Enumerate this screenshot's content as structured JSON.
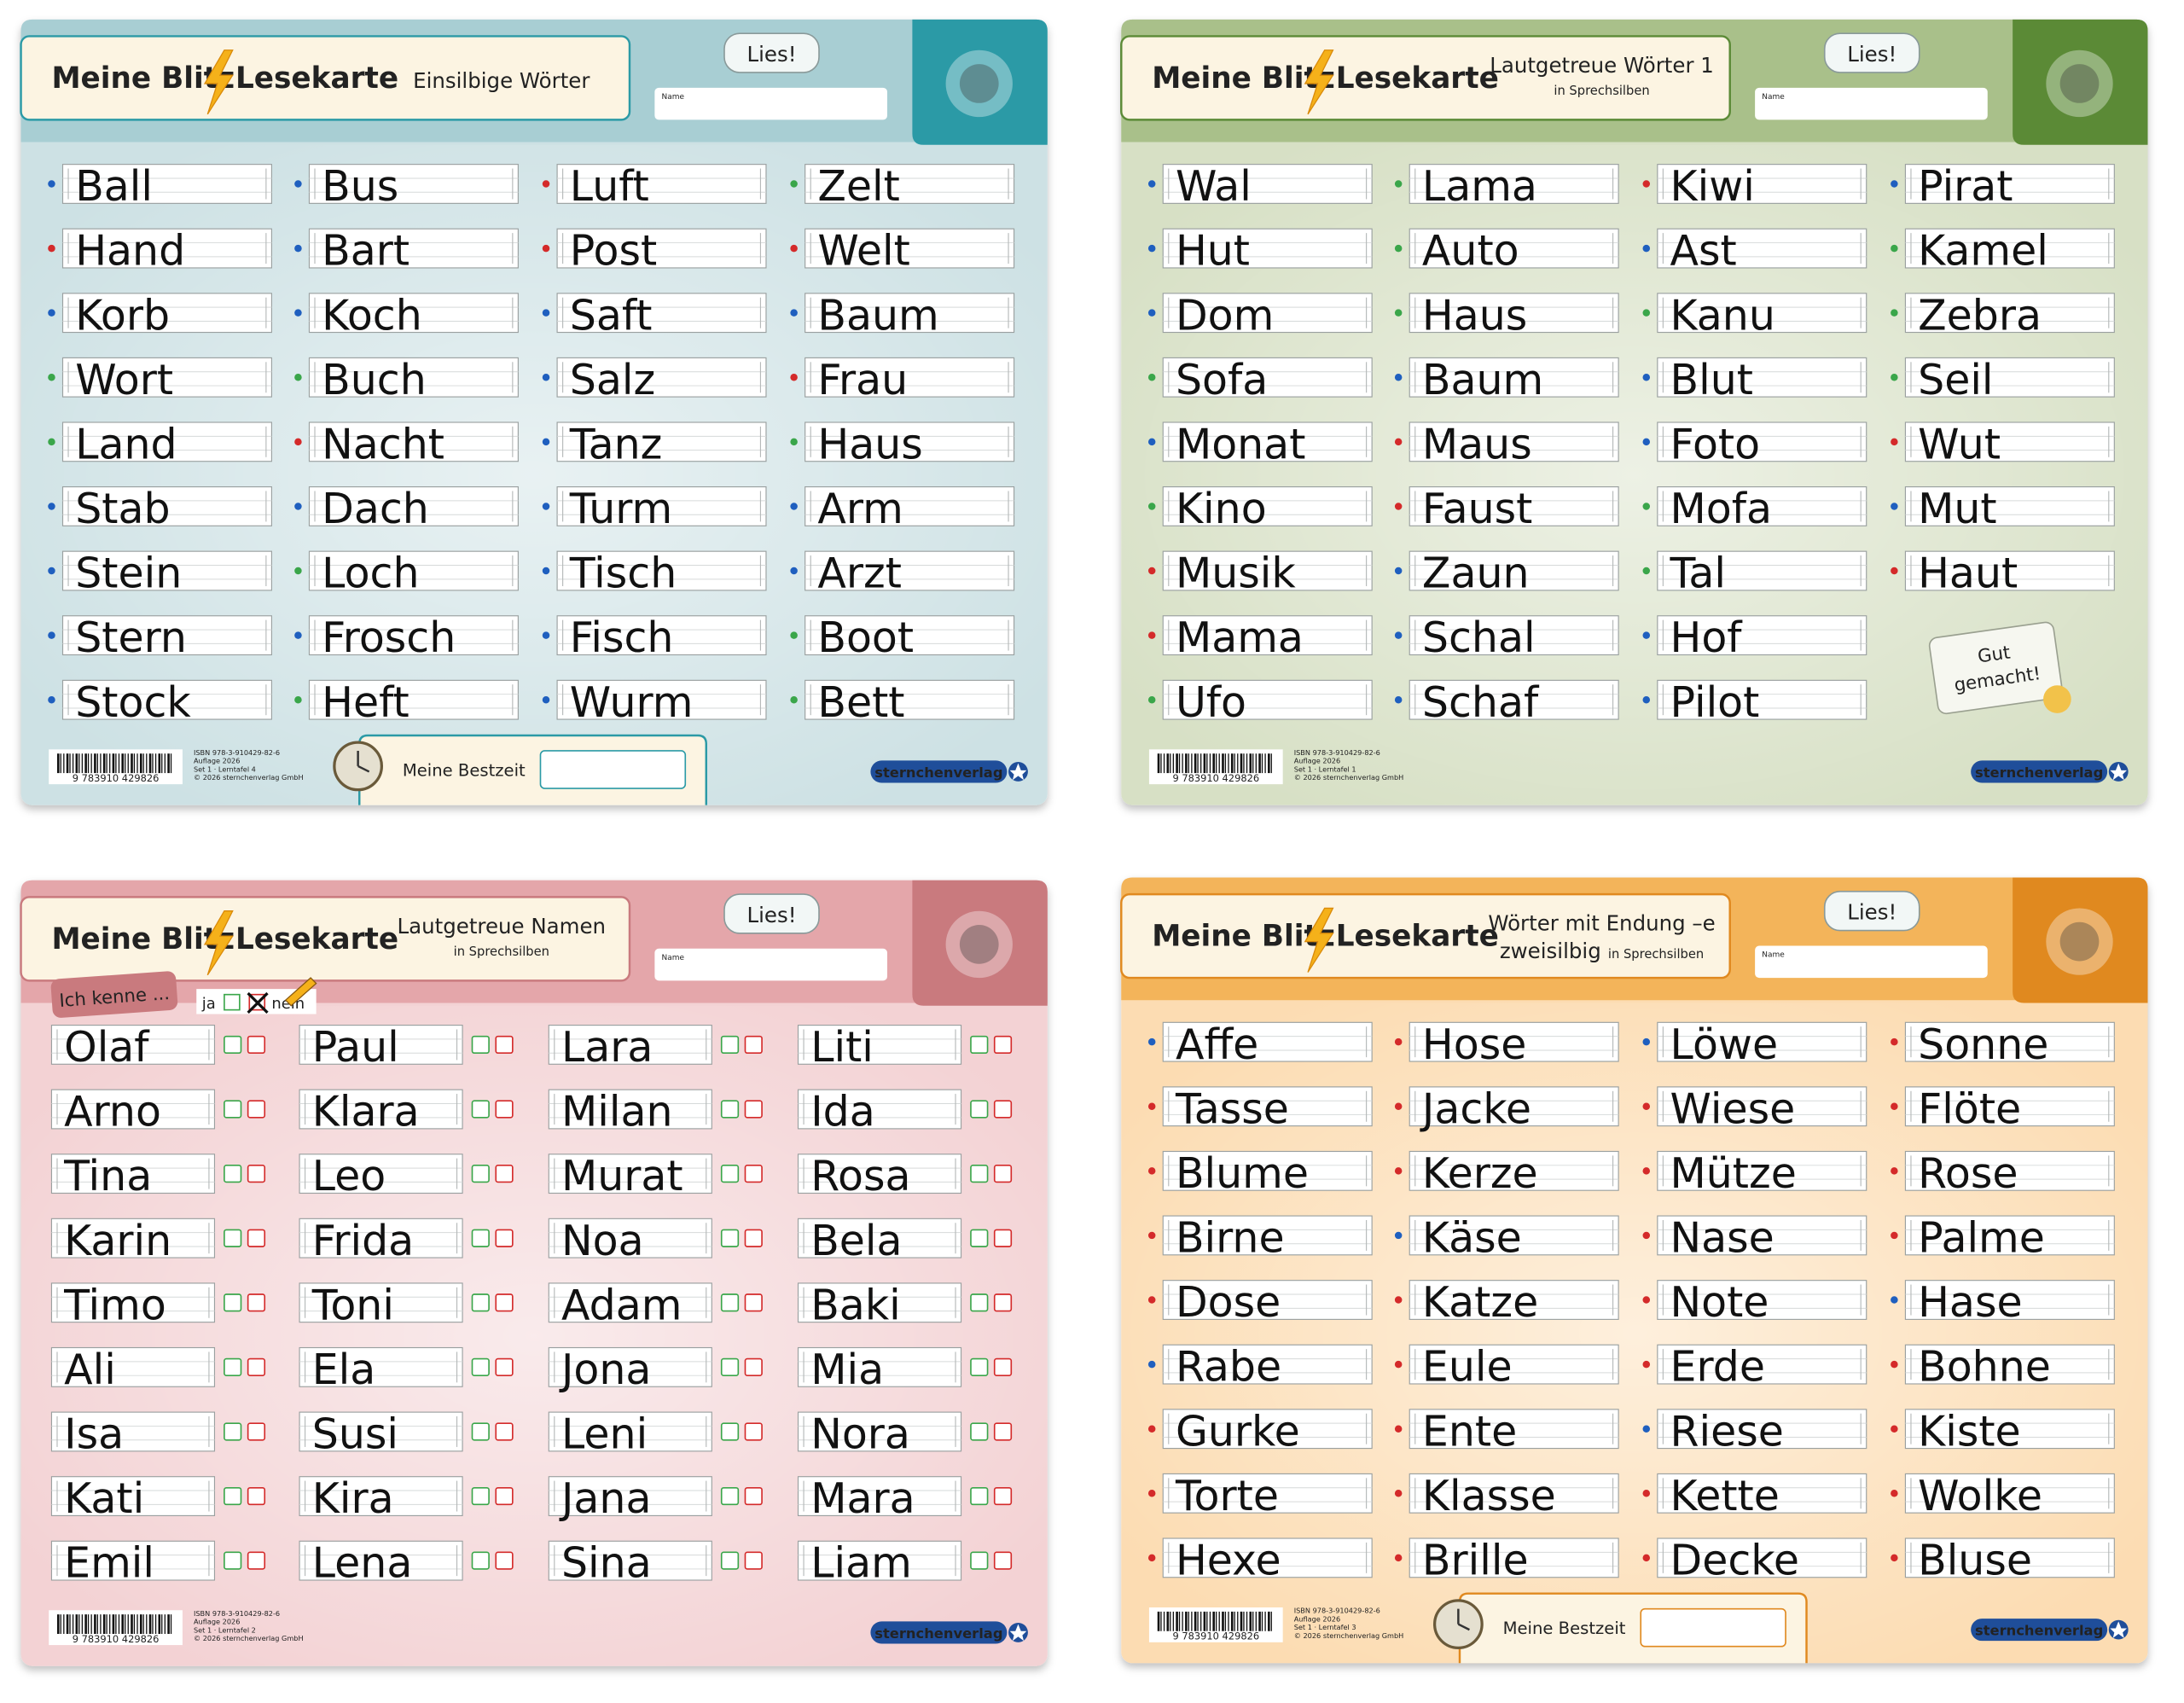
{
  "cards": [
    {
      "brand": [
        "Meine Blitz",
        "Lesekarte"
      ],
      "title_lines": [
        "Einsilbige Wörter"
      ],
      "read_button": "Lies!",
      "name_label": "Name",
      "colors": {
        "bg": "#cde1e4",
        "header": "#a8ced3",
        "picture": "#2b9aa6",
        "logo": "#2a93c4"
      },
      "columns": [
        [
          {
            "word": "Ball",
            "dot": "#1f5fbf"
          },
          {
            "word": "Hand",
            "dot": "#d42a2a"
          },
          {
            "word": "Korb",
            "dot": "#1f5fbf"
          },
          {
            "word": "Wort",
            "dot": "#3aa64a"
          },
          {
            "word": "Land",
            "dot": "#3aa64a"
          },
          {
            "word": "Stab",
            "dot": "#1f5fbf"
          },
          {
            "word": "Stein",
            "dot": "#1f5fbf"
          },
          {
            "word": "Stern",
            "dot": "#1f5fbf"
          },
          {
            "word": "Stock",
            "dot": "#1f5fbf"
          }
        ],
        [
          {
            "word": "Bus",
            "dot": "#1f5fbf"
          },
          {
            "word": "Bart",
            "dot": "#1f5fbf"
          },
          {
            "word": "Koch",
            "dot": "#1f5fbf"
          },
          {
            "word": "Buch",
            "dot": "#3aa64a"
          },
          {
            "word": "Nacht",
            "dot": "#d42a2a"
          },
          {
            "word": "Dach",
            "dot": "#1f5fbf"
          },
          {
            "word": "Loch",
            "dot": "#3aa64a"
          },
          {
            "word": "Frosch",
            "dot": "#1f5fbf"
          },
          {
            "word": "Heft",
            "dot": "#3aa64a"
          }
        ],
        [
          {
            "word": "Luft",
            "dot": "#d42a2a"
          },
          {
            "word": "Post",
            "dot": "#d42a2a"
          },
          {
            "word": "Saft",
            "dot": "#1f5fbf"
          },
          {
            "word": "Salz",
            "dot": "#1f5fbf"
          },
          {
            "word": "Tanz",
            "dot": "#1f5fbf"
          },
          {
            "word": "Turm",
            "dot": "#1f5fbf"
          },
          {
            "word": "Tisch",
            "dot": "#1f5fbf"
          },
          {
            "word": "Fisch",
            "dot": "#1f5fbf"
          },
          {
            "word": "Wurm",
            "dot": "#1f5fbf"
          }
        ],
        [
          {
            "word": "Zelt",
            "dot": "#3aa64a"
          },
          {
            "word": "Welt",
            "dot": "#d42a2a"
          },
          {
            "word": "Baum",
            "dot": "#1f5fbf"
          },
          {
            "word": "Frau",
            "dot": "#d42a2a"
          },
          {
            "word": "Haus",
            "dot": "#3aa64a"
          },
          {
            "word": "Arm",
            "dot": "#1f5fbf"
          },
          {
            "word": "Arzt",
            "dot": "#1f5fbf"
          },
          {
            "word": "Boot",
            "dot": "#3aa64a"
          },
          {
            "word": "Bett",
            "dot": "#3aa64a"
          }
        ]
      ],
      "barcode": "9 783910 429826",
      "imprint": [
        "ISBN 978-3-910429-82-6",
        "Auflage 2026",
        "Set 1 · Lerntafel 4",
        "© 2026 sternchenverlag GmbH"
      ],
      "best_time": "Meine Bestzeit",
      "publisher": "sternchenverlag"
    },
    {
      "brand": [
        "Meine Blitz",
        "Lesekarte"
      ],
      "title_lines": [
        "Lautgetreue Wörter 1"
      ],
      "subtitle": "in Sprechsilben",
      "read_button": "Lies!",
      "name_label": "Name",
      "colors": {
        "bg": "#d7e0c5",
        "header": "#a9c08a",
        "picture": "#5b8a36",
        "logo": "#4f9a35"
      },
      "columns": [
        [
          {
            "word": "Wal",
            "dot": "#1f5fbf"
          },
          {
            "word": "Hut",
            "dot": "#1f5fbf"
          },
          {
            "word": "Dom",
            "dot": "#1f5fbf"
          },
          {
            "word": "Sofa",
            "dot": "#3aa64a"
          },
          {
            "word": "Monat",
            "dot": "#1f5fbf"
          },
          {
            "word": "Kino",
            "dot": "#3aa64a"
          },
          {
            "word": "Musik",
            "dot": "#d42a2a"
          },
          {
            "word": "Mama",
            "dot": "#d42a2a"
          },
          {
            "word": "Ufo",
            "dot": "#3aa64a"
          }
        ],
        [
          {
            "word": "Lama",
            "dot": "#3aa64a"
          },
          {
            "word": "Auto",
            "dot": "#3aa64a"
          },
          {
            "word": "Haus",
            "dot": "#3aa64a"
          },
          {
            "word": "Baum",
            "dot": "#1f5fbf"
          },
          {
            "word": "Maus",
            "dot": "#d42a2a"
          },
          {
            "word": "Faust",
            "dot": "#d42a2a"
          },
          {
            "word": "Zaun",
            "dot": "#1f5fbf"
          },
          {
            "word": "Schal",
            "dot": "#1f5fbf"
          },
          {
            "word": "Schaf",
            "dot": "#1f5fbf"
          }
        ],
        [
          {
            "word": "Kiwi",
            "dot": "#d42a2a"
          },
          {
            "word": "Ast",
            "dot": "#1f5fbf"
          },
          {
            "word": "Kanu",
            "dot": "#3aa64a"
          },
          {
            "word": "Blut",
            "dot": "#1f5fbf"
          },
          {
            "word": "Foto",
            "dot": "#1f5fbf"
          },
          {
            "word": "Mofa",
            "dot": "#3aa64a"
          },
          {
            "word": "Tal",
            "dot": "#3aa64a"
          },
          {
            "word": "Hof",
            "dot": "#1f5fbf"
          },
          {
            "word": "Pilot",
            "dot": "#1f5fbf"
          }
        ],
        [
          {
            "word": "Pirat",
            "dot": "#1f5fbf"
          },
          {
            "word": "Kamel",
            "dot": "#3aa64a"
          },
          {
            "word": "Zebra",
            "dot": "#3aa64a"
          },
          {
            "word": "Seil",
            "dot": "#3aa64a"
          },
          {
            "word": "Wut",
            "dot": "#d42a2a"
          },
          {
            "word": "Mut",
            "dot": "#1f5fbf"
          },
          {
            "word": "Haut",
            "dot": "#d42a2a"
          }
        ]
      ],
      "sticker": [
        "Gut",
        "gemacht!"
      ],
      "barcode": "9 783910 429826",
      "imprint": [
        "ISBN 978-3-910429-82-6",
        "Auflage 2026",
        "Set 1 · Lerntafel 1",
        "© 2026 sternchenverlag GmbH"
      ],
      "publisher": "sternchenverlag"
    },
    {
      "brand": [
        "Meine Blitz",
        "Lesekarte"
      ],
      "title_lines": [
        "Lautgetreue Namen"
      ],
      "subtitle": "in Sprechsilben",
      "read_button": "Lies!",
      "name_label": "Name",
      "colors": {
        "bg": "#f3d2d4",
        "header": "#e4a6aa",
        "picture": "#c97a7e",
        "logo": "#c2566a"
      },
      "tag": "Ich kenne ...",
      "yes": "ja",
      "no": "nein",
      "columns": [
        [
          {
            "word": "Olaf"
          },
          {
            "word": "Arno"
          },
          {
            "word": "Tina"
          },
          {
            "word": "Karin"
          },
          {
            "word": "Timo"
          },
          {
            "word": "Ali"
          },
          {
            "word": "Isa"
          },
          {
            "word": "Kati"
          },
          {
            "word": "Emil"
          }
        ],
        [
          {
            "word": "Paul"
          },
          {
            "word": "Klara"
          },
          {
            "word": "Leo"
          },
          {
            "word": "Frida"
          },
          {
            "word": "Toni"
          },
          {
            "word": "Ela"
          },
          {
            "word": "Susi"
          },
          {
            "word": "Kira"
          },
          {
            "word": "Lena"
          }
        ],
        [
          {
            "word": "Lara"
          },
          {
            "word": "Milan"
          },
          {
            "word": "Murat"
          },
          {
            "word": "Noa"
          },
          {
            "word": "Adam"
          },
          {
            "word": "Jona"
          },
          {
            "word": "Leni"
          },
          {
            "word": "Jana"
          },
          {
            "word": "Sina"
          }
        ],
        [
          {
            "word": "Liti"
          },
          {
            "word": "Ida"
          },
          {
            "word": "Rosa"
          },
          {
            "word": "Bela"
          },
          {
            "word": "Baki"
          },
          {
            "word": "Mia"
          },
          {
            "word": "Nora"
          },
          {
            "word": "Mara"
          },
          {
            "word": "Liam"
          }
        ]
      ],
      "barcode": "9 783910 429826",
      "imprint": [
        "ISBN 978-3-910429-82-6",
        "Auflage 2026",
        "Set 1 · Lerntafel 2",
        "© 2026 sternchenverlag GmbH"
      ],
      "publisher": "sternchenverlag"
    },
    {
      "brand": [
        "Meine Blitz",
        "Lesekarte"
      ],
      "title_lines": [
        "Wörter mit Endung –e",
        "zweisilbig"
      ],
      "subtitle": "in Sprechsilben",
      "read_button": "Lies!",
      "name_label": "Name",
      "colors": {
        "bg": "#fcdcb2",
        "header": "#f3b45a",
        "picture": "#e0891f",
        "logo": "#e47f1c"
      },
      "columns": [
        [
          {
            "word": "Affe",
            "dot": "#1f5fbf"
          },
          {
            "word": "Tasse",
            "dot": "#d42a2a"
          },
          {
            "word": "Blume",
            "dot": "#d42a2a"
          },
          {
            "word": "Birne",
            "dot": "#d42a2a"
          },
          {
            "word": "Dose",
            "dot": "#d42a2a"
          },
          {
            "word": "Rabe",
            "dot": "#1f5fbf"
          },
          {
            "word": "Gurke",
            "dot": "#d42a2a"
          },
          {
            "word": "Torte",
            "dot": "#d42a2a"
          },
          {
            "word": "Hexe",
            "dot": "#d42a2a"
          }
        ],
        [
          {
            "word": "Hose",
            "dot": "#d42a2a"
          },
          {
            "word": "Jacke",
            "dot": "#d42a2a"
          },
          {
            "word": "Kerze",
            "dot": "#d42a2a"
          },
          {
            "word": "Käse",
            "dot": "#1f5fbf"
          },
          {
            "word": "Katze",
            "dot": "#d42a2a"
          },
          {
            "word": "Eule",
            "dot": "#d42a2a"
          },
          {
            "word": "Ente",
            "dot": "#d42a2a"
          },
          {
            "word": "Klasse",
            "dot": "#d42a2a"
          },
          {
            "word": "Brille",
            "dot": "#d42a2a"
          }
        ],
        [
          {
            "word": "Löwe",
            "dot": "#1f5fbf"
          },
          {
            "word": "Wiese",
            "dot": "#d42a2a"
          },
          {
            "word": "Mütze",
            "dot": "#d42a2a"
          },
          {
            "word": "Nase",
            "dot": "#d42a2a"
          },
          {
            "word": "Note",
            "dot": "#d42a2a"
          },
          {
            "word": "Erde",
            "dot": "#d42a2a"
          },
          {
            "word": "Riese",
            "dot": "#1f5fbf"
          },
          {
            "word": "Kette",
            "dot": "#d42a2a"
          },
          {
            "word": "Decke",
            "dot": "#d42a2a"
          }
        ],
        [
          {
            "word": "Sonne",
            "dot": "#d42a2a"
          },
          {
            "word": "Flöte",
            "dot": "#d42a2a"
          },
          {
            "word": "Rose",
            "dot": "#d42a2a"
          },
          {
            "word": "Palme",
            "dot": "#d42a2a"
          },
          {
            "word": "Hase",
            "dot": "#1f5fbf"
          },
          {
            "word": "Bohne",
            "dot": "#d42a2a"
          },
          {
            "word": "Kiste",
            "dot": "#d42a2a"
          },
          {
            "word": "Wolke",
            "dot": "#d42a2a"
          },
          {
            "word": "Bluse",
            "dot": "#d42a2a"
          }
        ]
      ],
      "barcode": "9 783910 429826",
      "imprint": [
        "ISBN 978-3-910429-82-6",
        "Auflage 2026",
        "Set 1 · Lerntafel 3",
        "© 2026 sternchenverlag GmbH"
      ],
      "best_time": "Meine Bestzeit",
      "publisher": "sternchenverlag"
    }
  ]
}
